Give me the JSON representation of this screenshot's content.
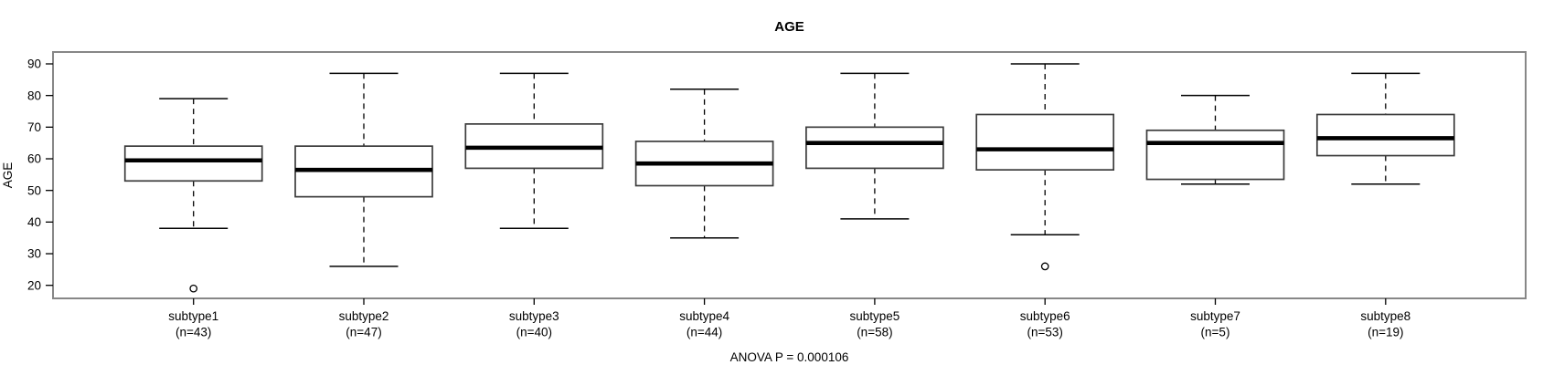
{
  "chart_data": {
    "type": "boxplot",
    "title": "AGE",
    "ylabel": "AGE",
    "xlabel": "",
    "annotation": "ANOVA P = 0.000106",
    "ylim": [
      20,
      90
    ],
    "yticks": [
      20,
      30,
      40,
      50,
      60,
      70,
      80,
      90
    ],
    "grid": false,
    "legend": "none",
    "colors": {
      "frame": "#878787",
      "box_stroke": "#3c3c3c",
      "line": "#000000",
      "background": "#ffffff"
    },
    "boxes": [
      {
        "category": "subtype1",
        "n_label": "(n=43)",
        "n": 43,
        "low": 38,
        "q1": 53,
        "median": 59.5,
        "q3": 64,
        "high": 79,
        "outliers": [
          19
        ]
      },
      {
        "category": "subtype2",
        "n_label": "(n=47)",
        "n": 47,
        "low": 26,
        "q1": 48,
        "median": 56.5,
        "q3": 64,
        "high": 87,
        "outliers": []
      },
      {
        "category": "subtype3",
        "n_label": "(n=40)",
        "n": 40,
        "low": 38,
        "q1": 57,
        "median": 63.5,
        "q3": 71,
        "high": 87,
        "outliers": []
      },
      {
        "category": "subtype4",
        "n_label": "(n=44)",
        "n": 44,
        "low": 35,
        "q1": 51.5,
        "median": 58.5,
        "q3": 65.5,
        "high": 82,
        "outliers": []
      },
      {
        "category": "subtype5",
        "n_label": "(n=58)",
        "n": 58,
        "low": 41,
        "q1": 57,
        "median": 65,
        "q3": 70,
        "high": 87,
        "outliers": []
      },
      {
        "category": "subtype6",
        "n_label": "(n=53)",
        "n": 53,
        "low": 36,
        "q1": 56.5,
        "median": 63,
        "q3": 74,
        "high": 90,
        "outliers": [
          26
        ]
      },
      {
        "category": "subtype7",
        "n_label": "(n=5)",
        "n": 5,
        "low": 52,
        "q1": 53.5,
        "median": 65,
        "q3": 69,
        "high": 80,
        "outliers": []
      },
      {
        "category": "subtype8",
        "n_label": "(n=19)",
        "n": 19,
        "low": 52,
        "q1": 61,
        "median": 66.5,
        "q3": 74,
        "high": 87,
        "outliers": []
      }
    ]
  }
}
